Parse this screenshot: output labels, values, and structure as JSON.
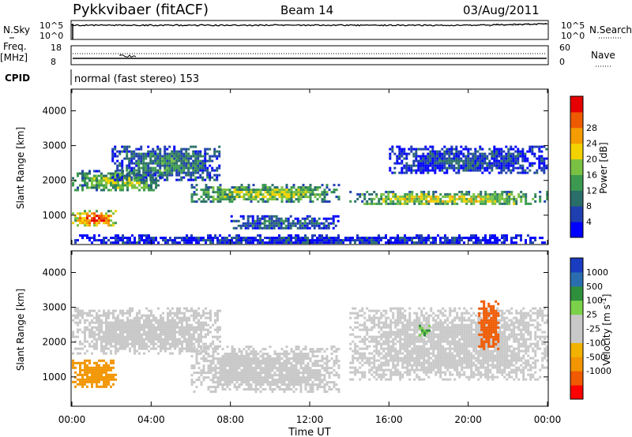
{
  "header": {
    "radar": "Pykkvibaer (fitACF)",
    "beam": "Beam 14",
    "date": "03/Aug/2011"
  },
  "noise_panel": {
    "left_label": "N.Sky",
    "left_ticks": [
      "10^5",
      "10^0"
    ],
    "right_ticks": [
      "10^5",
      "10^0"
    ],
    "right_label": "N.Search"
  },
  "freq_panel": {
    "left_label_line1": "Freq.",
    "left_label_line2": "[MHz]",
    "left_ticks": [
      "18",
      "8"
    ],
    "right_ticks": [
      "60",
      "0"
    ],
    "right_label": "Nave"
  },
  "cpid": {
    "label": "CPID",
    "value": "normal (fast stereo) 153"
  },
  "colors": {
    "frame": "#000000",
    "power_scale": [
      "#0000ff",
      "#1f3fb0",
      "#2a6e6a",
      "#3c9a50",
      "#7ac143",
      "#f2d200",
      "#f49c00",
      "#ee5a00",
      "#e60000"
    ],
    "velocity_scale": [
      "#ff0000",
      "#f05a00",
      "#f29500",
      "#f2b200",
      "#c8c8c8",
      "#c8c8c8",
      "#7bd24a",
      "#2e8f3c",
      "#2a6eb0",
      "#1a3cc0"
    ]
  },
  "chart_data": [
    {
      "type": "heatmap",
      "title": "Power",
      "ylabel": "Slant Range [km]",
      "xlabel": "",
      "ylim": [
        180,
        4600
      ],
      "yticks": [
        "1000",
        "2000",
        "3000",
        "4000"
      ],
      "xticks": [
        "00:00",
        "04:00",
        "08:00",
        "12:00",
        "16:00",
        "20:00",
        "00:00"
      ],
      "colorbar": {
        "label": "Power [dB]",
        "ticks": [
          "4",
          "8",
          "12",
          "16",
          "20",
          "24",
          "28"
        ]
      },
      "features": [
        {
          "t_start": 0.0,
          "t_end": 2.2,
          "range_low": 700,
          "range_high": 1150,
          "level_db": 30
        },
        {
          "t_start": 0.0,
          "t_end": 4.5,
          "range_low": 1700,
          "range_high": 2300,
          "level_db": 18
        },
        {
          "t_start": 2.0,
          "t_end": 7.5,
          "range_low": 2000,
          "range_high": 3000,
          "level_db": 12
        },
        {
          "t_start": 6.0,
          "t_end": 13.5,
          "range_low": 1400,
          "range_high": 1900,
          "level_db": 18
        },
        {
          "t_start": 8.0,
          "t_end": 13.5,
          "range_low": 600,
          "range_high": 1000,
          "level_db": 10
        },
        {
          "t_start": 14.0,
          "t_end": 24.0,
          "range_low": 1300,
          "range_high": 1700,
          "level_db": 20
        },
        {
          "t_start": 16.0,
          "t_end": 24.0,
          "range_low": 2200,
          "range_high": 3000,
          "level_db": 8
        },
        {
          "t_start": 0.0,
          "t_end": 24.0,
          "range_low": 180,
          "range_high": 450,
          "level_db": 6
        }
      ]
    },
    {
      "type": "heatmap",
      "title": "Velocity",
      "ylabel": "Slant Range [km]",
      "xlabel": "Time UT",
      "ylim": [
        180,
        4600
      ],
      "yticks": [
        "1000",
        "2000",
        "3000",
        "4000"
      ],
      "xticks": [
        "00:00",
        "04:00",
        "08:00",
        "12:00",
        "16:00",
        "20:00",
        "00:00"
      ],
      "colorbar": {
        "label": "Velocity [m s^-1]",
        "ticks": [
          "1000",
          "500",
          "100",
          "25",
          "-25",
          "-100",
          "-500",
          "-1000"
        ]
      },
      "features": [
        {
          "t_start": 0.0,
          "t_end": 2.2,
          "range_low": 700,
          "range_high": 1500,
          "velocity": -150
        },
        {
          "t_start": 0.0,
          "t_end": 7.5,
          "range_low": 1700,
          "range_high": 3000,
          "velocity": 0
        },
        {
          "t_start": 6.0,
          "t_end": 13.5,
          "range_low": 600,
          "range_high": 1900,
          "velocity": 0
        },
        {
          "t_start": 14.0,
          "t_end": 24.0,
          "range_low": 900,
          "range_high": 3000,
          "velocity": 0
        },
        {
          "t_start": 20.5,
          "t_end": 21.5,
          "range_low": 1800,
          "range_high": 3200,
          "velocity": -300
        },
        {
          "t_start": 17.5,
          "t_end": 18.0,
          "range_low": 2200,
          "range_high": 2500,
          "velocity": 100
        }
      ]
    }
  ]
}
